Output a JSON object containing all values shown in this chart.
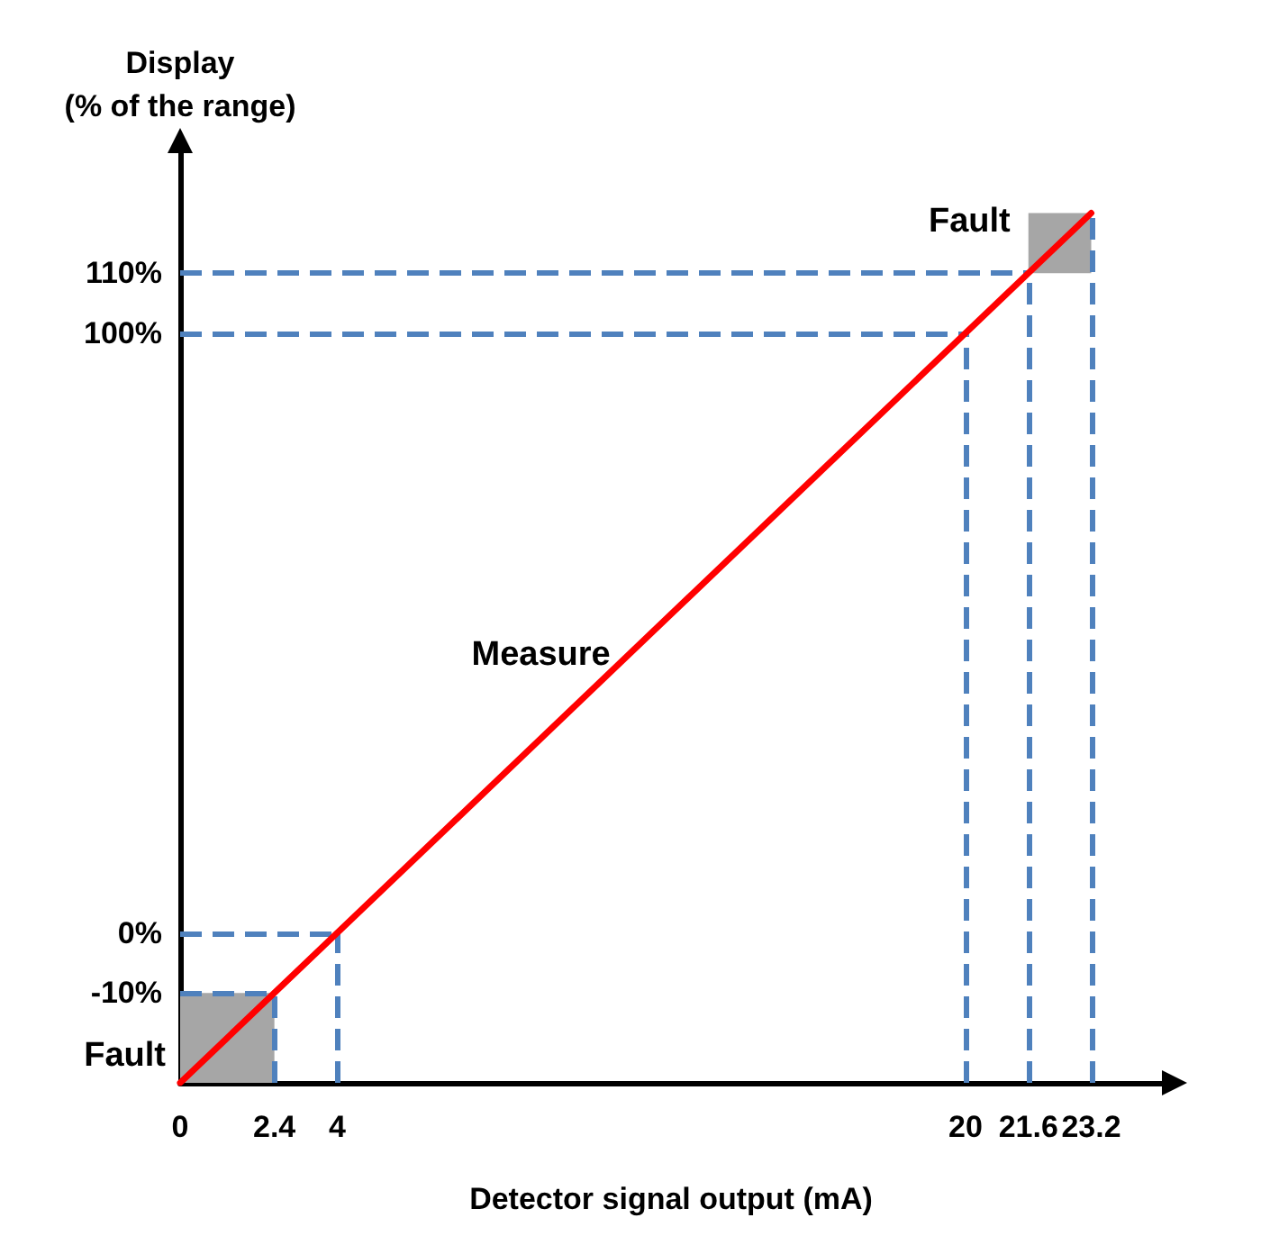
{
  "chart_data": {
    "type": "line",
    "ylabel": "Display\n(% of the range)",
    "xlabel": "Detector signal output (mA)",
    "series": [
      {
        "name": "Measure",
        "color": "#ff0000",
        "x": [
          0,
          23.2
        ],
        "values": [
          -25,
          120
        ]
      }
    ],
    "xlim": [
      0,
      25
    ],
    "ylim": [
      -25,
      130
    ],
    "xticks": [
      0,
      2.4,
      4,
      20,
      21.6,
      23.2
    ],
    "yticks": [
      {
        "value": -10,
        "label": "-10%"
      },
      {
        "value": 0,
        "label": "0%"
      },
      {
        "value": 100,
        "label": "100%"
      },
      {
        "value": 110,
        "label": "110%"
      }
    ],
    "ref_lines": [
      {
        "axis": "y",
        "value": -10,
        "color": "#4f81bd",
        "line_style": "dashed"
      },
      {
        "axis": "y",
        "value": 0,
        "color": "#4f81bd",
        "line_style": "dashed"
      },
      {
        "axis": "y",
        "value": 100,
        "color": "#4f81bd",
        "line_style": "dashed"
      },
      {
        "axis": "y",
        "value": 110,
        "color": "#4f81bd",
        "line_style": "dashed"
      },
      {
        "axis": "x",
        "value": 2.4,
        "color": "#4f81bd",
        "line_style": "dashed"
      },
      {
        "axis": "x",
        "value": 4,
        "color": "#4f81bd",
        "line_style": "dashed"
      },
      {
        "axis": "x",
        "value": 20,
        "color": "#4f81bd",
        "line_style": "dashed"
      },
      {
        "axis": "x",
        "value": 21.6,
        "color": "#4f81bd",
        "line_style": "dashed"
      },
      {
        "axis": "x",
        "value": 23.2,
        "color": "#4f81bd",
        "line_style": "dashed"
      }
    ],
    "bands": [
      {
        "axis": "x",
        "from": 0,
        "to": 2.4,
        "color": "#a6a6a6",
        "label": "Fault"
      },
      {
        "axis": "x",
        "from": 21.6,
        "to": 23.2,
        "color": "#a6a6a6",
        "label": "Fault"
      }
    ],
    "grid": false,
    "legend": false,
    "marker": "none",
    "line_style": "solid"
  }
}
